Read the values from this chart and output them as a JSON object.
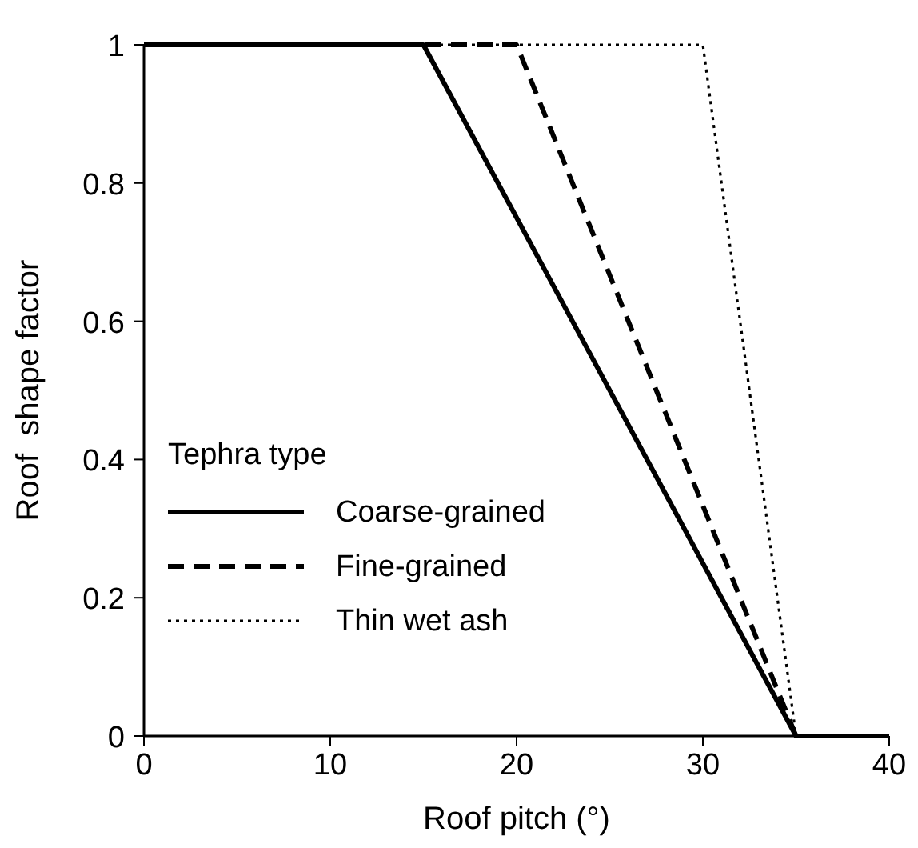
{
  "chart_data": {
    "type": "line",
    "xlabel": "Roof pitch (°)",
    "ylabel": "Roof  shape factor",
    "legend_title": "Tephra type",
    "legend": "bottom left",
    "grid": false,
    "marker": "none",
    "xlim": [
      0,
      40
    ],
    "xticks": [
      0,
      10,
      20,
      30,
      40
    ],
    "ylim": [
      0,
      1
    ],
    "yticks": [
      0,
      0.2,
      0.4,
      0.6,
      0.8,
      1
    ],
    "series": [
      {
        "name": "Coarse-grained",
        "color": "#000000",
        "line_style": "solid",
        "x": [
          0,
          15,
          35,
          40
        ],
        "values": [
          1,
          1,
          0,
          0
        ]
      },
      {
        "name": "Fine-grained",
        "color": "#000000",
        "line_style": "dashed",
        "x": [
          0,
          20,
          35,
          40
        ],
        "values": [
          1,
          1,
          0,
          0
        ]
      },
      {
        "name": "Thin wet ash",
        "color": "#000000",
        "line_style": "dotted",
        "x": [
          0,
          30,
          35,
          40
        ],
        "values": [
          1,
          1,
          0,
          0
        ]
      }
    ]
  }
}
